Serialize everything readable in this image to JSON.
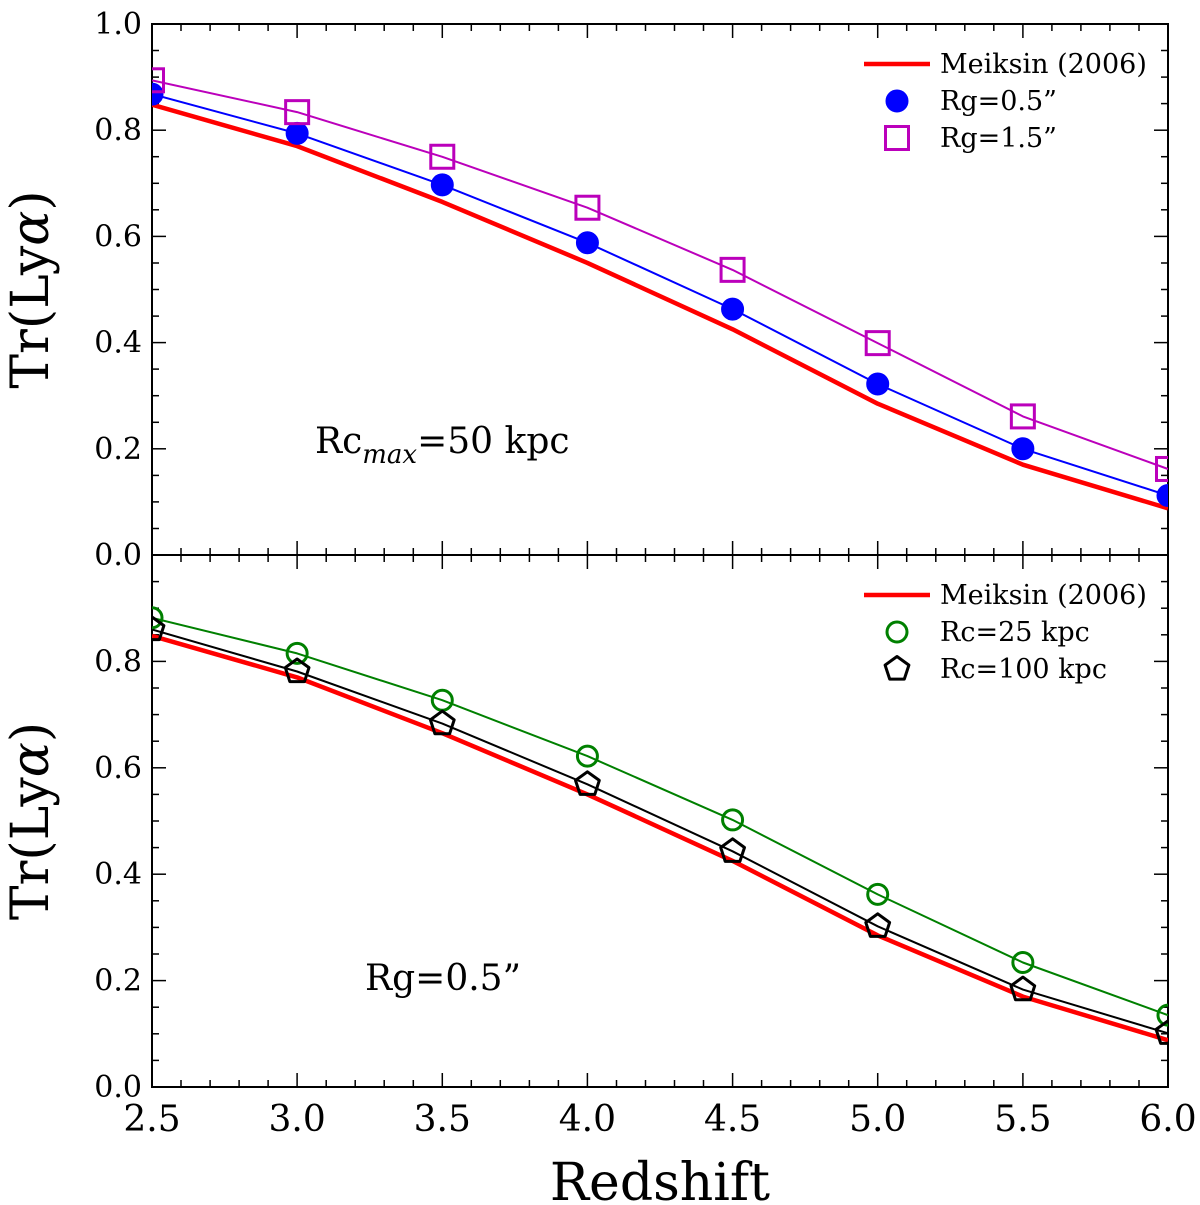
{
  "chart_data": [
    {
      "type": "line",
      "panel": "top",
      "xlabel": "Redshift",
      "ylabel_main": "Tr(Ly",
      "ylabel_greek": "α",
      "ylabel_close": ")",
      "xlim": [
        2.5,
        6.0
      ],
      "ylim": [
        0.0,
        1.0
      ],
      "yticks": [
        "0.0",
        "0.2",
        "0.4",
        "0.6",
        "0.8",
        "1.0"
      ],
      "annotation": {
        "main": "Rc",
        "sub": "max",
        "rest": "=50 kpc"
      },
      "legend_position": "top-right",
      "series": [
        {
          "name": "Meiksin (2006)",
          "color": "#ff0000",
          "marker": "none",
          "x": [
            2.5,
            3.0,
            3.5,
            4.0,
            4.5,
            5.0,
            5.5,
            6.0
          ],
          "values": [
            0.848,
            0.77,
            0.665,
            0.55,
            0.425,
            0.285,
            0.17,
            0.088
          ]
        },
        {
          "name": "Rg=0.5”",
          "color": "#0000ff",
          "marker": "filled-circle",
          "x": [
            2.5,
            3.0,
            3.5,
            4.0,
            4.5,
            5.0,
            5.5,
            6.0
          ],
          "values": [
            0.868,
            0.794,
            0.697,
            0.588,
            0.463,
            0.322,
            0.2,
            0.112
          ]
        },
        {
          "name": "Rg=1.5”",
          "color": "#bb00bb",
          "marker": "open-square",
          "x": [
            2.5,
            3.0,
            3.5,
            4.0,
            4.5,
            5.0,
            5.5,
            6.0
          ],
          "values": [
            0.894,
            0.834,
            0.75,
            0.654,
            0.537,
            0.399,
            0.261,
            0.162
          ]
        }
      ]
    },
    {
      "type": "line",
      "panel": "bottom",
      "xlabel": "Redshift",
      "ylabel_main": "Tr(Ly",
      "ylabel_greek": "α",
      "ylabel_close": ")",
      "xlim": [
        2.5,
        6.0
      ],
      "ylim": [
        0.0,
        1.0
      ],
      "xticks": [
        "2.5",
        "3.0",
        "3.5",
        "4.0",
        "4.5",
        "5.0",
        "5.5",
        "6.0"
      ],
      "yticks": [
        "0.0",
        "0.2",
        "0.4",
        "0.6",
        "0.8"
      ],
      "annotation": {
        "main": "Rg=0.5”"
      },
      "legend_position": "top-right",
      "series": [
        {
          "name": "Meiksin (2006)",
          "color": "#ff0000",
          "marker": "none",
          "x": [
            2.5,
            3.0,
            3.5,
            4.0,
            4.5,
            5.0,
            5.5,
            6.0
          ],
          "values": [
            0.848,
            0.77,
            0.665,
            0.55,
            0.425,
            0.285,
            0.17,
            0.088
          ]
        },
        {
          "name": "Rc=25 kpc",
          "color": "#008000",
          "marker": "open-circle",
          "x": [
            2.5,
            3.0,
            3.5,
            4.0,
            4.5,
            5.0,
            5.5,
            6.0
          ],
          "values": [
            0.882,
            0.815,
            0.727,
            0.622,
            0.502,
            0.362,
            0.234,
            0.135
          ]
        },
        {
          "name": "Rc=100 kpc",
          "color": "#000000",
          "marker": "open-pentagon",
          "x": [
            2.5,
            3.0,
            3.5,
            4.0,
            4.5,
            5.0,
            5.5,
            6.0
          ],
          "values": [
            0.86,
            0.781,
            0.683,
            0.569,
            0.443,
            0.302,
            0.183,
            0.101
          ]
        }
      ]
    }
  ]
}
